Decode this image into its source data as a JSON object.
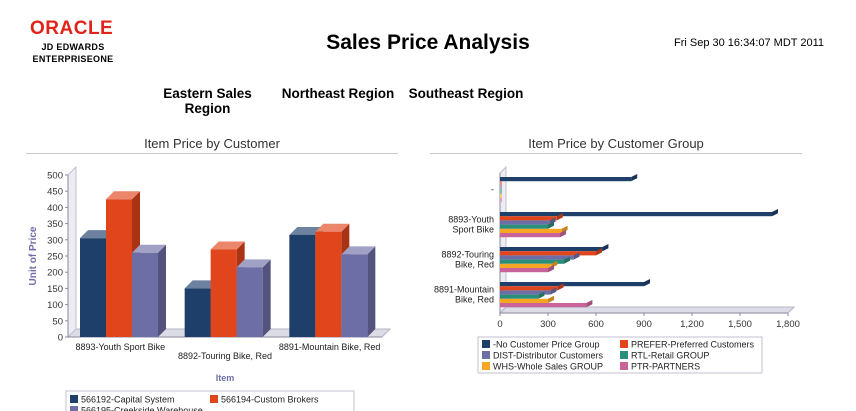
{
  "header": {
    "logo_oracle": "ORACLE",
    "logo_line1": "JD EDWARDS",
    "logo_line2": "ENTERPRISEONE",
    "title": "Sales Price Analysis",
    "timestamp": "Fri Sep 30 16:34:07 MDT 2011"
  },
  "regions": [
    "Eastern Sales Region",
    "Northeast Region",
    "Southeast Region"
  ],
  "colors": {
    "navy": "#1f3f6b",
    "orange": "#e0451c",
    "slate": "#6e6ea6",
    "teal": "#2a8f7a",
    "amber": "#f5a623",
    "pink": "#c8649a"
  },
  "chart_data": [
    {
      "type": "bar",
      "title": "Item Price by Customer",
      "xlabel": "Item",
      "ylabel": "Unit of Price",
      "ylim": [
        0,
        500
      ],
      "yticks": [
        0,
        50,
        100,
        150,
        200,
        250,
        300,
        350,
        400,
        450,
        500
      ],
      "categories": [
        "8893-Youth Sport Bike",
        "8892-Touring Bike, Red",
        "8891-Mountain Bike, Red"
      ],
      "series": [
        {
          "name": "566192-Capital System",
          "color": "#1f3f6b",
          "values": [
            305,
            150,
            315
          ]
        },
        {
          "name": "566194-Custom Brokers",
          "color": "#e0451c",
          "values": [
            425,
            270,
            325
          ]
        },
        {
          "name": "566195-Creekside Warehouse",
          "color": "#6e6ea6",
          "values": [
            260,
            215,
            255
          ]
        }
      ],
      "legend": "bottom"
    },
    {
      "type": "bar",
      "orientation": "horizontal",
      "title": "Item Price by Customer Group",
      "xlim": [
        0,
        1800
      ],
      "xticks": [
        "0",
        "300",
        "600",
        "900",
        "1,200",
        "1,500",
        "1,800"
      ],
      "xtick_values": [
        0,
        300,
        600,
        900,
        1200,
        1500,
        1800
      ],
      "categories": [
        "-",
        "8893-Youth Sport Bike",
        "8892-Touring Bike, Red",
        "8891-Mountain Bike, Red"
      ],
      "series": [
        {
          "name": "-No Customer Price Group",
          "color": "#1f3f6b",
          "values": [
            820,
            1700,
            640,
            900
          ]
        },
        {
          "name": "PREFER-Preferred Customers",
          "color": "#e0451c",
          "values": [
            0,
            355,
            600,
            360
          ]
        },
        {
          "name": "DIST-Distributor Customers",
          "color": "#6e6ea6",
          "values": [
            0,
            310,
            460,
            315
          ]
        },
        {
          "name": "RTL-Retail GROUP",
          "color": "#2a8f7a",
          "values": [
            0,
            300,
            400,
            240
          ]
        },
        {
          "name": "WHS-Whole Sales GROUP",
          "color": "#f5a623",
          "values": [
            0,
            385,
            320,
            300
          ]
        },
        {
          "name": "PTR-PARTNERS",
          "color": "#c8649a",
          "values": [
            0,
            375,
            300,
            540
          ]
        }
      ],
      "legend": "bottom"
    }
  ]
}
